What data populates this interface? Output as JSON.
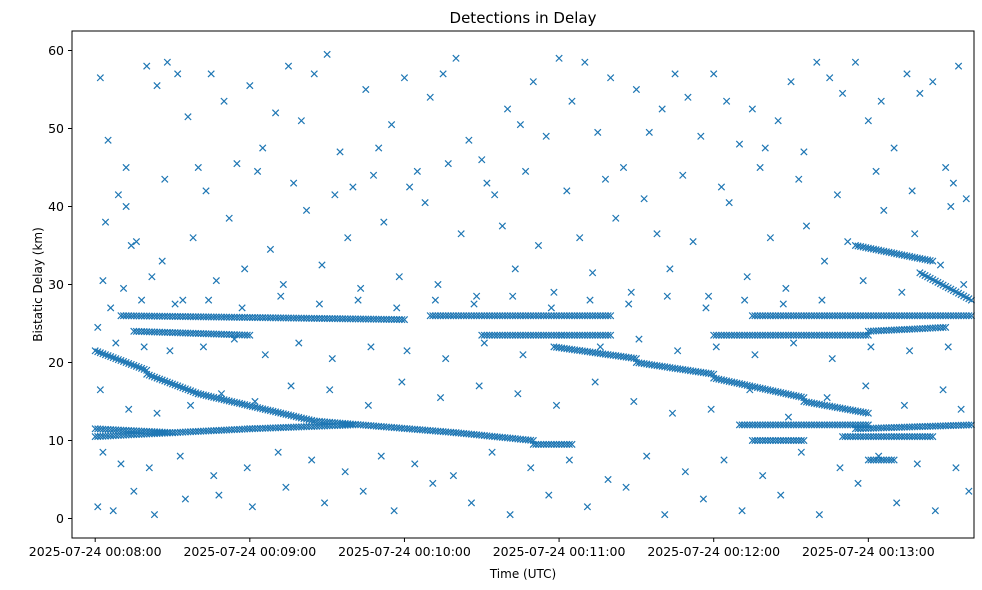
{
  "chart_data": {
    "type": "scatter",
    "title": "Detections in Delay",
    "xlabel": "Time (UTC)",
    "ylabel": "Bistatic Delay (km)",
    "marker": "x",
    "color": "#1f77b4",
    "grid": false,
    "legend": null,
    "x_unit": "seconds after 2025-07-24 00:08:00 UTC",
    "xlim": [
      -9,
      341
    ],
    "ylim": [
      -2.5,
      62.5
    ],
    "xticks": [
      "2025-07-24 00:08:00",
      "2025-07-24 00:09:00",
      "2025-07-24 00:10:00",
      "2025-07-24 00:11:00",
      "2025-07-24 00:12:00",
      "2025-07-24 00:13:00"
    ],
    "yticks": [
      "0",
      "10",
      "20",
      "30",
      "40",
      "50",
      "60"
    ],
    "tracks": [
      {
        "x": [
          0,
          20
        ],
        "y": [
          21.5,
          19.0
        ]
      },
      {
        "x": [
          20,
          40
        ],
        "y": [
          18.5,
          16.0
        ]
      },
      {
        "x": [
          40,
          85
        ],
        "y": [
          16.0,
          12.5
        ]
      },
      {
        "x": [
          85,
          140
        ],
        "y": [
          12.5,
          11.0
        ]
      },
      {
        "x": [
          140,
          170
        ],
        "y": [
          11.0,
          10.0
        ]
      },
      {
        "x": [
          170,
          185
        ],
        "y": [
          9.5,
          9.5
        ]
      },
      {
        "x": [
          0,
          60
        ],
        "y": [
          10.5,
          11.5
        ]
      },
      {
        "x": [
          60,
          100
        ],
        "y": [
          11.5,
          12.0
        ]
      },
      {
        "x": [
          0,
          30
        ],
        "y": [
          11.5,
          11.0
        ]
      },
      {
        "x": [
          10,
          120
        ],
        "y": [
          26.0,
          25.5
        ]
      },
      {
        "x": [
          15,
          60
        ],
        "y": [
          24.0,
          23.5
        ]
      },
      {
        "x": [
          130,
          200
        ],
        "y": [
          26.0,
          26.0
        ]
      },
      {
        "x": [
          150,
          200
        ],
        "y": [
          23.5,
          23.5
        ]
      },
      {
        "x": [
          178,
          210
        ],
        "y": [
          22.0,
          20.5
        ]
      },
      {
        "x": [
          210,
          240
        ],
        "y": [
          20.0,
          18.5
        ]
      },
      {
        "x": [
          240,
          275
        ],
        "y": [
          18.0,
          15.5
        ]
      },
      {
        "x": [
          275,
          300
        ],
        "y": [
          15.0,
          13.5
        ]
      },
      {
        "x": [
          250,
          300
        ],
        "y": [
          12.0,
          12.0
        ]
      },
      {
        "x": [
          255,
          275
        ],
        "y": [
          10.0,
          10.0
        ]
      },
      {
        "x": [
          295,
          340
        ],
        "y": [
          11.5,
          12.0
        ]
      },
      {
        "x": [
          290,
          325
        ],
        "y": [
          10.5,
          10.5
        ]
      },
      {
        "x": [
          300,
          310
        ],
        "y": [
          7.5,
          7.5
        ]
      },
      {
        "x": [
          295,
          325
        ],
        "y": [
          35.0,
          33.0
        ]
      },
      {
        "x": [
          320,
          340
        ],
        "y": [
          31.5,
          28.0
        ]
      },
      {
        "x": [
          255,
          340
        ],
        "y": [
          26.0,
          26.0
        ]
      },
      {
        "x": [
          300,
          330
        ],
        "y": [
          24.0,
          24.5
        ]
      },
      {
        "x": [
          240,
          300
        ],
        "y": [
          23.5,
          23.5
        ]
      }
    ],
    "scatter_points": [
      [
        2,
        56.5
      ],
      [
        5,
        48.5
      ],
      [
        9,
        41.5
      ],
      [
        12,
        40.0
      ],
      [
        16,
        35.5
      ],
      [
        20,
        58.0
      ],
      [
        24,
        55.5
      ],
      [
        28,
        58.5
      ],
      [
        32,
        57.0
      ],
      [
        36,
        51.5
      ],
      [
        40,
        45.0
      ],
      [
        45,
        57.0
      ],
      [
        50,
        53.5
      ],
      [
        55,
        45.5
      ],
      [
        60,
        55.5
      ],
      [
        65,
        47.5
      ],
      [
        70,
        52.0
      ],
      [
        75,
        58.0
      ],
      [
        80,
        51.0
      ],
      [
        85,
        57.0
      ],
      [
        90,
        59.5
      ],
      [
        95,
        47.0
      ],
      [
        100,
        42.5
      ],
      [
        105,
        55.0
      ],
      [
        110,
        47.5
      ],
      [
        115,
        50.5
      ],
      [
        120,
        56.5
      ],
      [
        125,
        44.5
      ],
      [
        130,
        54.0
      ],
      [
        135,
        57.0
      ],
      [
        140,
        59.0
      ],
      [
        145,
        48.5
      ],
      [
        150,
        46.0
      ],
      [
        155,
        41.5
      ],
      [
        160,
        52.5
      ],
      [
        165,
        50.5
      ],
      [
        170,
        56.0
      ],
      [
        175,
        49.0
      ],
      [
        180,
        59.0
      ],
      [
        185,
        53.5
      ],
      [
        190,
        58.5
      ],
      [
        195,
        49.5
      ],
      [
        200,
        56.5
      ],
      [
        205,
        45.0
      ],
      [
        210,
        55.0
      ],
      [
        215,
        49.5
      ],
      [
        220,
        52.5
      ],
      [
        225,
        57.0
      ],
      [
        230,
        54.0
      ],
      [
        235,
        49.0
      ],
      [
        240,
        57.0
      ],
      [
        245,
        53.5
      ],
      [
        250,
        48.0
      ],
      [
        255,
        52.5
      ],
      [
        260,
        47.5
      ],
      [
        265,
        51.0
      ],
      [
        270,
        56.0
      ],
      [
        275,
        47.0
      ],
      [
        280,
        58.5
      ],
      [
        285,
        56.5
      ],
      [
        290,
        54.5
      ],
      [
        295,
        58.5
      ],
      [
        300,
        51.0
      ],
      [
        305,
        53.5
      ],
      [
        310,
        47.5
      ],
      [
        315,
        57.0
      ],
      [
        320,
        54.5
      ],
      [
        325,
        56.0
      ],
      [
        330,
        45.0
      ],
      [
        335,
        58.0
      ],
      [
        4,
        38.0
      ],
      [
        14,
        35.0
      ],
      [
        26,
        33.0
      ],
      [
        38,
        36.0
      ],
      [
        52,
        38.5
      ],
      [
        68,
        34.5
      ],
      [
        82,
        39.5
      ],
      [
        98,
        36.0
      ],
      [
        112,
        38.0
      ],
      [
        128,
        40.5
      ],
      [
        142,
        36.5
      ],
      [
        158,
        37.5
      ],
      [
        172,
        35.0
      ],
      [
        188,
        36.0
      ],
      [
        202,
        38.5
      ],
      [
        218,
        36.5
      ],
      [
        232,
        35.5
      ],
      [
        246,
        40.5
      ],
      [
        262,
        36.0
      ],
      [
        276,
        37.5
      ],
      [
        292,
        35.5
      ],
      [
        306,
        39.5
      ],
      [
        318,
        36.5
      ],
      [
        332,
        40.0
      ],
      [
        338,
        41.0
      ],
      [
        3,
        30.5
      ],
      [
        11,
        29.5
      ],
      [
        22,
        31.0
      ],
      [
        34,
        28.0
      ],
      [
        47,
        30.5
      ],
      [
        58,
        32.0
      ],
      [
        73,
        30.0
      ],
      [
        88,
        32.5
      ],
      [
        103,
        29.5
      ],
      [
        118,
        31.0
      ],
      [
        133,
        30.0
      ],
      [
        148,
        28.5
      ],
      [
        163,
        32.0
      ],
      [
        178,
        29.0
      ],
      [
        193,
        31.5
      ],
      [
        208,
        29.0
      ],
      [
        223,
        32.0
      ],
      [
        238,
        28.5
      ],
      [
        253,
        31.0
      ],
      [
        268,
        29.5
      ],
      [
        283,
        33.0
      ],
      [
        298,
        30.5
      ],
      [
        313,
        29.0
      ],
      [
        328,
        32.5
      ],
      [
        337,
        30.0
      ],
      [
        6,
        27.0
      ],
      [
        18,
        28.0
      ],
      [
        31,
        27.5
      ],
      [
        44,
        28.0
      ],
      [
        57,
        27.0
      ],
      [
        72,
        28.5
      ],
      [
        87,
        27.5
      ],
      [
        102,
        28.0
      ],
      [
        117,
        27.0
      ],
      [
        132,
        28.0
      ],
      [
        147,
        27.5
      ],
      [
        162,
        28.5
      ],
      [
        177,
        27.0
      ],
      [
        192,
        28.0
      ],
      [
        207,
        27.5
      ],
      [
        222,
        28.5
      ],
      [
        237,
        27.0
      ],
      [
        252,
        28.0
      ],
      [
        267,
        27.5
      ],
      [
        282,
        28.0
      ],
      [
        1,
        24.5
      ],
      [
        8,
        22.5
      ],
      [
        19,
        22.0
      ],
      [
        29,
        21.5
      ],
      [
        42,
        22.0
      ],
      [
        54,
        23.0
      ],
      [
        66,
        21.0
      ],
      [
        79,
        22.5
      ],
      [
        92,
        20.5
      ],
      [
        107,
        22.0
      ],
      [
        121,
        21.5
      ],
      [
        136,
        20.5
      ],
      [
        151,
        22.5
      ],
      [
        166,
        21.0
      ],
      [
        181,
        23.5
      ],
      [
        196,
        22.0
      ],
      [
        211,
        23.0
      ],
      [
        226,
        21.5
      ],
      [
        241,
        22.0
      ],
      [
        256,
        21.0
      ],
      [
        271,
        22.5
      ],
      [
        286,
        20.5
      ],
      [
        301,
        22.0
      ],
      [
        316,
        21.5
      ],
      [
        331,
        22.0
      ],
      [
        2,
        16.5
      ],
      [
        13,
        14.0
      ],
      [
        24,
        13.5
      ],
      [
        37,
        14.5
      ],
      [
        49,
        16.0
      ],
      [
        62,
        15.0
      ],
      [
        76,
        17.0
      ],
      [
        91,
        16.5
      ],
      [
        106,
        14.5
      ],
      [
        119,
        17.5
      ],
      [
        134,
        15.5
      ],
      [
        149,
        17.0
      ],
      [
        164,
        16.0
      ],
      [
        179,
        14.5
      ],
      [
        194,
        17.5
      ],
      [
        209,
        15.0
      ],
      [
        224,
        13.5
      ],
      [
        239,
        14.0
      ],
      [
        254,
        16.5
      ],
      [
        269,
        13.0
      ],
      [
        284,
        15.5
      ],
      [
        299,
        17.0
      ],
      [
        314,
        14.5
      ],
      [
        329,
        16.5
      ],
      [
        336,
        14.0
      ],
      [
        3,
        8.5
      ],
      [
        10,
        7.0
      ],
      [
        21,
        6.5
      ],
      [
        33,
        8.0
      ],
      [
        46,
        5.5
      ],
      [
        59,
        6.5
      ],
      [
        71,
        8.5
      ],
      [
        84,
        7.5
      ],
      [
        97,
        6.0
      ],
      [
        111,
        8.0
      ],
      [
        124,
        7.0
      ],
      [
        139,
        5.5
      ],
      [
        154,
        8.5
      ],
      [
        169,
        6.5
      ],
      [
        184,
        7.5
      ],
      [
        199,
        5.0
      ],
      [
        214,
        8.0
      ],
      [
        229,
        6.0
      ],
      [
        244,
        7.5
      ],
      [
        259,
        5.5
      ],
      [
        274,
        8.5
      ],
      [
        289,
        6.5
      ],
      [
        304,
        8.0
      ],
      [
        319,
        7.0
      ],
      [
        334,
        6.5
      ],
      [
        1,
        1.5
      ],
      [
        7,
        1.0
      ],
      [
        15,
        3.5
      ],
      [
        23,
        0.5
      ],
      [
        35,
        2.5
      ],
      [
        48,
        3.0
      ],
      [
        61,
        1.5
      ],
      [
        74,
        4.0
      ],
      [
        89,
        2.0
      ],
      [
        104,
        3.5
      ],
      [
        116,
        1.0
      ],
      [
        131,
        4.5
      ],
      [
        146,
        2.0
      ],
      [
        161,
        0.5
      ],
      [
        176,
        3.0
      ],
      [
        191,
        1.5
      ],
      [
        206,
        4.0
      ],
      [
        221,
        0.5
      ],
      [
        236,
        2.5
      ],
      [
        251,
        1.0
      ],
      [
        266,
        3.0
      ],
      [
        281,
        0.5
      ],
      [
        296,
        4.5
      ],
      [
        311,
        2.0
      ],
      [
        326,
        1.0
      ],
      [
        339,
        3.5
      ],
      [
        12,
        45.0
      ],
      [
        27,
        43.5
      ],
      [
        43,
        42.0
      ],
      [
        63,
        44.5
      ],
      [
        77,
        43.0
      ],
      [
        93,
        41.5
      ],
      [
        108,
        44.0
      ],
      [
        122,
        42.5
      ],
      [
        137,
        45.5
      ],
      [
        152,
        43.0
      ],
      [
        167,
        44.5
      ],
      [
        183,
        42.0
      ],
      [
        198,
        43.5
      ],
      [
        213,
        41.0
      ],
      [
        228,
        44.0
      ],
      [
        243,
        42.5
      ],
      [
        258,
        45.0
      ],
      [
        273,
        43.5
      ],
      [
        288,
        41.5
      ],
      [
        303,
        44.5
      ],
      [
        317,
        42.0
      ],
      [
        333,
        43.0
      ]
    ]
  }
}
